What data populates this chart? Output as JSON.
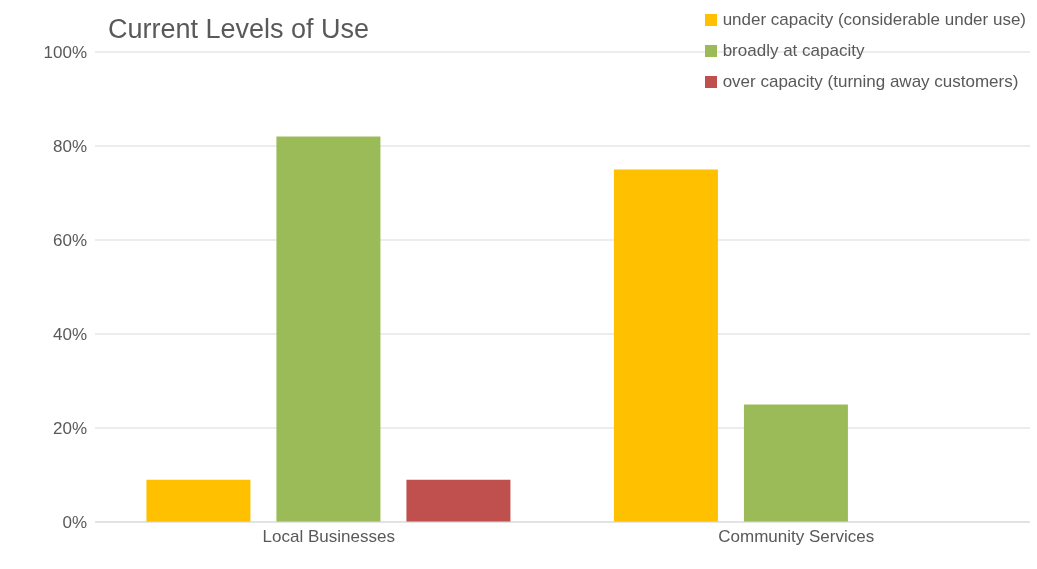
{
  "chart_data": {
    "type": "bar",
    "title": "Current Levels of Use",
    "categories": [
      "Local Businesses",
      "Community Services"
    ],
    "series": [
      {
        "name": "under capacity (considerable under use)",
        "color": "#ffc000",
        "values": [
          9,
          75
        ]
      },
      {
        "name": "broadly at capacity",
        "color": "#9bbb59",
        "values": [
          82,
          25
        ]
      },
      {
        "name": "over capacity (turning away customers)",
        "color": "#c0504d",
        "values": [
          9,
          null
        ]
      }
    ],
    "ylim": [
      0,
      100
    ],
    "yticks": [
      {
        "value": 0,
        "label": "0%"
      },
      {
        "value": 20,
        "label": "20%"
      },
      {
        "value": 40,
        "label": "40%"
      },
      {
        "value": 60,
        "label": "60%"
      },
      {
        "value": 80,
        "label": "80%"
      },
      {
        "value": 100,
        "label": "100%"
      }
    ],
    "grid": "y",
    "legend": "top right"
  }
}
